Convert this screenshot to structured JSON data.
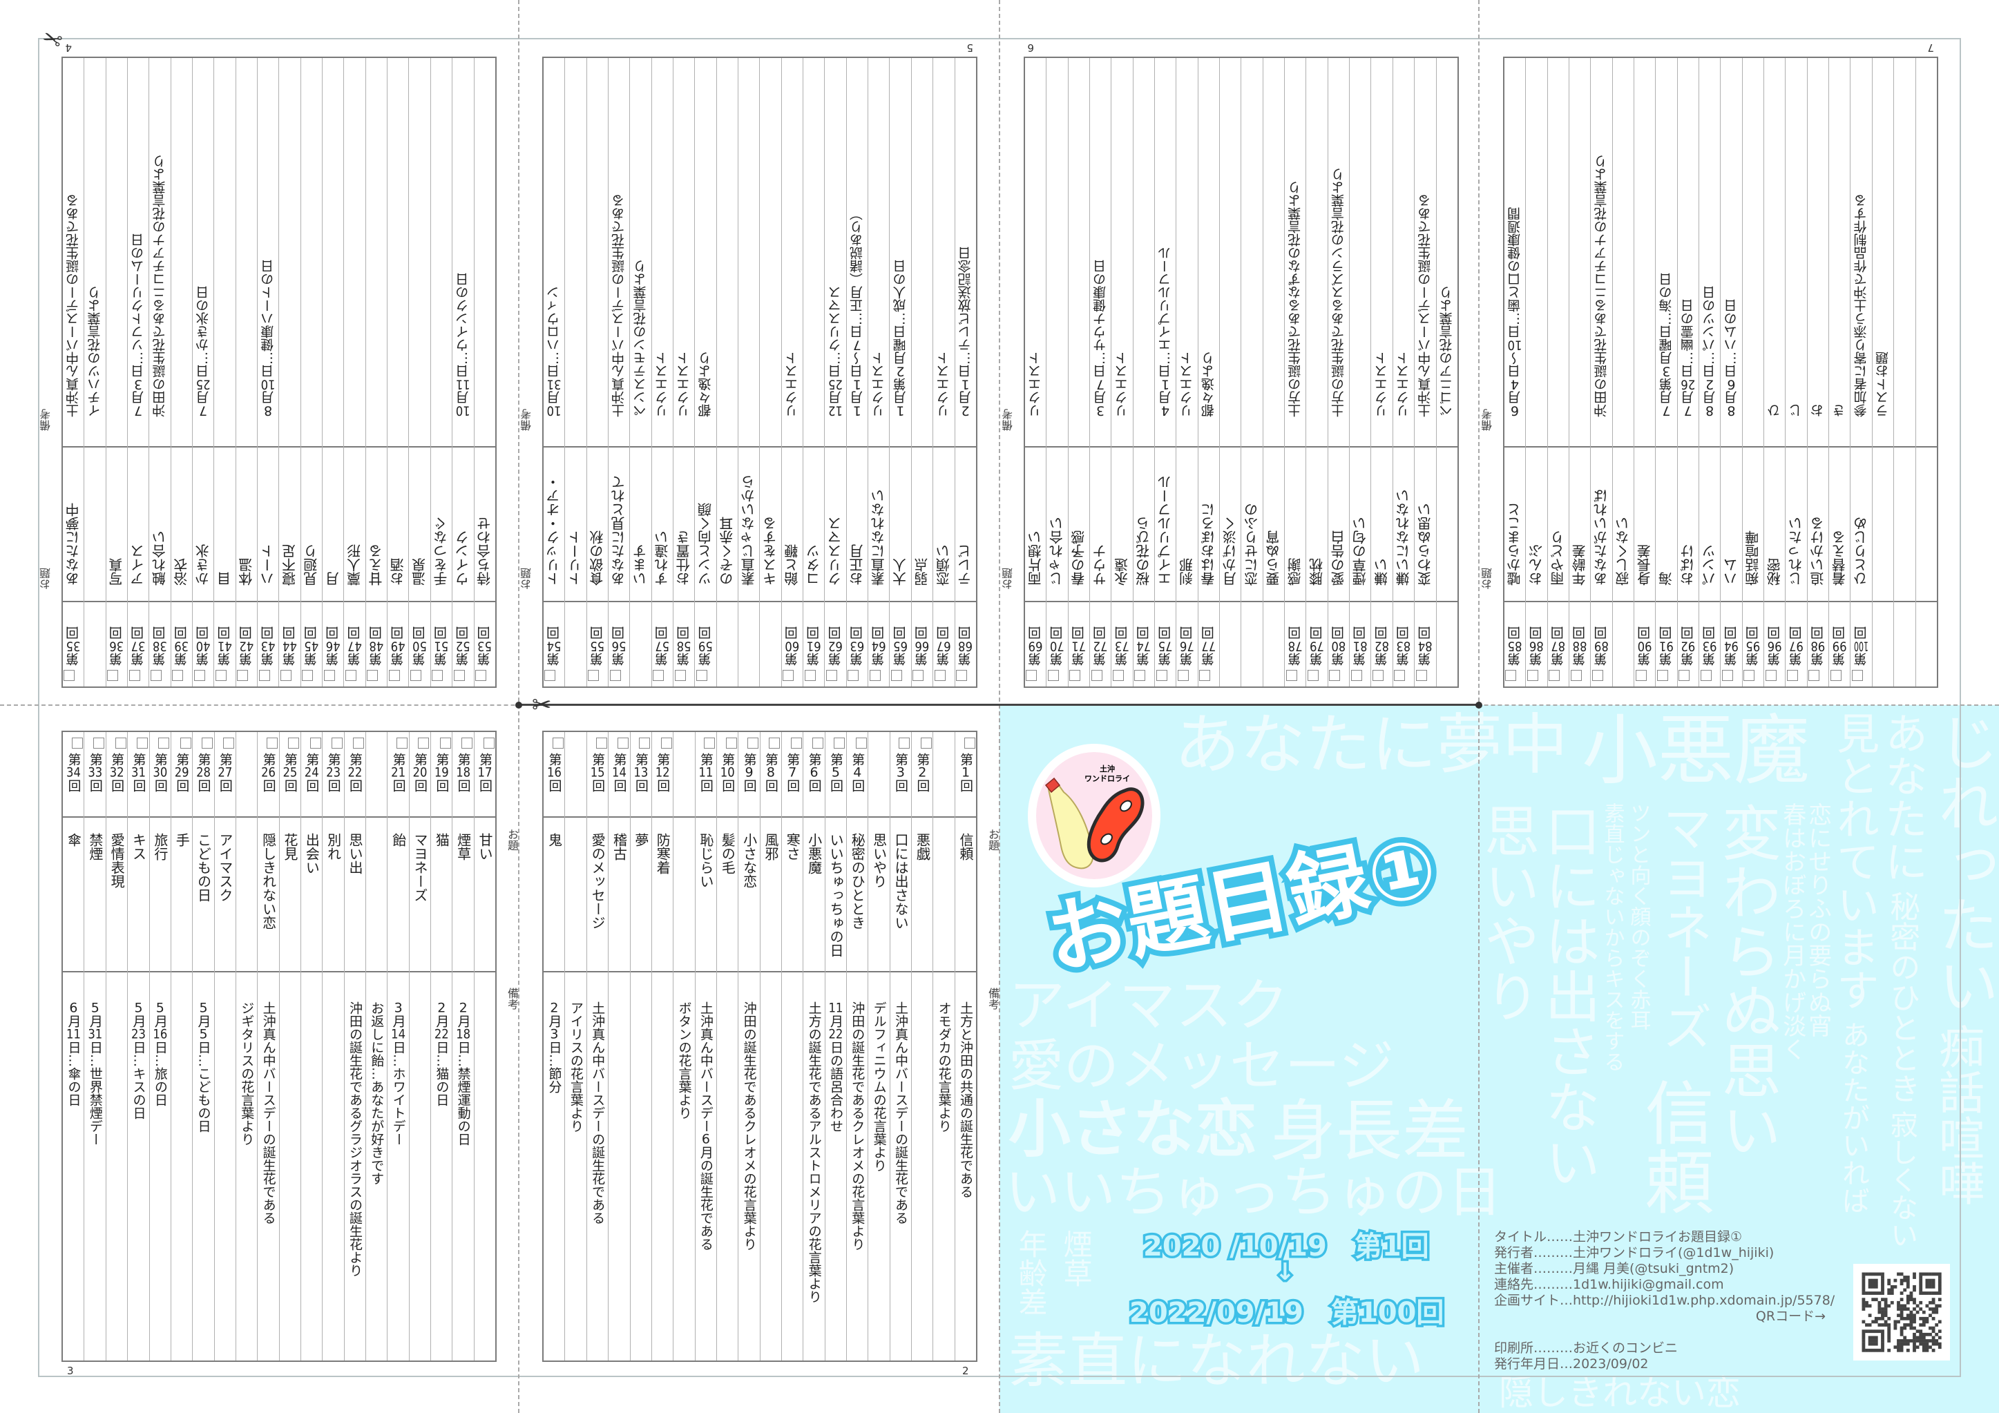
{
  "num_prefix": "第",
  "num_suffix": "回",
  "table_labels": {
    "topic": "お題",
    "note": "備考"
  },
  "pages": {
    "p4": {
      "number": "4",
      "rows": [
        {
          "num": "35",
          "topic": "あなたに夢中",
          "note": "土沖真ん中バースデーの誕生花である"
        },
        {
          "num": null,
          "topic": "",
          "note": "イチハツの花言葉より"
        },
        {
          "num": "36",
          "topic": "写真",
          "note": ""
        },
        {
          "num": "37",
          "topic": "アイス",
          "note": "7月3日…ソフトクリームの日"
        },
        {
          "num": "38",
          "topic": "触れ合い",
          "note": "沖田の誕生花であるニコチアナの花言葉より"
        },
        {
          "num": "39",
          "topic": "浴衣",
          "note": ""
        },
        {
          "num": "40",
          "topic": "かき氷",
          "note": "7月25日…かき氷の日"
        },
        {
          "num": "41",
          "topic": "目",
          "note": ""
        },
        {
          "num": "42",
          "topic": "体温",
          "note": ""
        },
        {
          "num": "43",
          "topic": "ハート",
          "note": "8月10日…健康ハートの日"
        },
        {
          "num": "44",
          "topic": "寝不足",
          "note": ""
        },
        {
          "num": "45",
          "topic": "見廻り",
          "note": ""
        },
        {
          "num": "46",
          "topic": "月",
          "note": ""
        },
        {
          "num": "47",
          "topic": "藁人形",
          "note": ""
        },
        {
          "num": "48",
          "topic": "甘える",
          "note": ""
        },
        {
          "num": "49",
          "topic": "お酒",
          "note": ""
        },
        {
          "num": "50",
          "topic": "温泉",
          "note": ""
        },
        {
          "num": "51",
          "topic": "手をつなぐ",
          "note": ""
        },
        {
          "num": "52",
          "topic": "ウインク",
          "note": "10月11日…ウインクの日"
        },
        {
          "num": "53",
          "topic": "待ち合わせ",
          "note": ""
        }
      ]
    },
    "p5": {
      "number": "5",
      "rows": [
        {
          "num": "54",
          "topic": "トリック・オア・",
          "note": "10月31日…ハロウィン"
        },
        {
          "num": null,
          "topic": "トリート",
          "note": ""
        },
        {
          "num": "55",
          "topic": "食欲の秋",
          "note": ""
        },
        {
          "num": "56",
          "topic": "あなたに見とれて",
          "note": "土沖真ん中バースデーの誕生花である"
        },
        {
          "num": null,
          "topic": "います",
          "note": "ペンステモンの花言葉より"
        },
        {
          "num": "57",
          "topic": "すれ違い",
          "note": "リクエスト"
        },
        {
          "num": "58",
          "topic": "お仕置き",
          "note": "リクエスト"
        },
        {
          "num": "59",
          "topic": "ツンと向く顔",
          "note": "都々逸より"
        },
        {
          "num": null,
          "topic": "のぞく赤耳",
          "note": ""
        },
        {
          "num": null,
          "topic": "素直じゃないから",
          "note": ""
        },
        {
          "num": null,
          "topic": "キスをする",
          "note": ""
        },
        {
          "num": "60",
          "topic": "飴と鞭",
          "note": "リクエスト"
        },
        {
          "num": "61",
          "topic": "コタツ",
          "note": ""
        },
        {
          "num": "62",
          "topic": "クリスマス",
          "note": "12月25日…クリスマス"
        },
        {
          "num": "63",
          "topic": "お正月",
          "note": "1月1日～7日…正月（諸説あり）"
        },
        {
          "num": "64",
          "topic": "素直になれない",
          "note": "リクエスト"
        },
        {
          "num": "65",
          "topic": "大人",
          "note": "1月第2月曜日…成人の日"
        },
        {
          "num": "66",
          "topic": "弱点",
          "note": ""
        },
        {
          "num": "67",
          "topic": "恋煩い",
          "note": "リクエスト"
        },
        {
          "num": "68",
          "topic": "テレビ",
          "note": "2月1日…テレビ放送記念日"
        }
      ]
    },
    "p6": {
      "number": "6",
      "rows": [
        {
          "num": "69",
          "topic": "両片想い",
          "note": "リクエスト"
        },
        {
          "num": "70",
          "topic": "じゃれ合い",
          "note": ""
        },
        {
          "num": "71",
          "topic": "春の予感",
          "note": ""
        },
        {
          "num": "72",
          "topic": "サウナ",
          "note": "3月7日…サウナ健康の日"
        },
        {
          "num": "73",
          "topic": "永遠",
          "note": "リクエスト"
        },
        {
          "num": "74",
          "topic": "桜の花びら",
          "note": ""
        },
        {
          "num": "75",
          "topic": "エイプリルフール",
          "note": "4月1日…エイプリルフール"
        },
        {
          "num": "76",
          "topic": "刹那",
          "note": "リクエスト"
        },
        {
          "num": "77",
          "topic": "春はおぼろに",
          "note": "都々逸より"
        },
        {
          "num": null,
          "topic": "月かげ淡く",
          "note": ""
        },
        {
          "num": null,
          "topic": "恋にせりふの",
          "note": ""
        },
        {
          "num": null,
          "topic": "要らぬ宵",
          "note": ""
        },
        {
          "num": "78",
          "topic": "感謝",
          "note": "土方の誕生花であるなずなの花言葉より"
        },
        {
          "num": "79",
          "topic": "膝枕",
          "note": ""
        },
        {
          "num": "80",
          "topic": "愛の告白",
          "note": "土方の誕生花であるスズランの花言葉より"
        },
        {
          "num": "81",
          "topic": "煙草の匂い",
          "note": ""
        },
        {
          "num": "82",
          "topic": "嫌い",
          "note": "リクエスト"
        },
        {
          "num": "83",
          "topic": "嫌いになれない",
          "note": "リクエスト"
        },
        {
          "num": "84",
          "topic": "変わらぬ思い",
          "note": "土沖真ん中バースデーの誕生花である"
        },
        {
          "num": null,
          "topic": "",
          "note": "ベゴニアの花言葉より"
        }
      ]
    },
    "p7": {
      "number": "7",
      "rows": [
        {
          "num": "85",
          "topic": "嘘からまこと",
          "note": "6月4日～10日…歯と口の健康週間"
        },
        {
          "num": "86",
          "topic": "おんぶ",
          "note": ""
        },
        {
          "num": "87",
          "topic": "雨やどり",
          "note": ""
        },
        {
          "num": "88",
          "topic": "年齢差",
          "note": ""
        },
        {
          "num": "89",
          "topic": "あなたがいれば",
          "note": "沖田の誕生花であるニコチアナの花言葉より"
        },
        {
          "num": null,
          "topic": "寂しくない",
          "note": ""
        },
        {
          "num": "90",
          "topic": "身長差",
          "note": ""
        },
        {
          "num": "91",
          "topic": "海",
          "note": "7月第3月曜日…海の日"
        },
        {
          "num": "92",
          "topic": "おばけ",
          "note": "7月26日…幽霊の日"
        },
        {
          "num": "93",
          "topic": "パンツ",
          "note": "8月2日…パンツの日"
        },
        {
          "num": "94",
          "topic": "ハム",
          "note": "8月6日…ハムの日"
        },
        {
          "num": "95",
          "topic": "痴話喧嘩",
          "note": ""
        },
        {
          "num": "96",
          "topic": "秘密",
          "note": "ひ"
        },
        {
          "num": "97",
          "topic": "じれったい",
          "note": "じ"
        },
        {
          "num": "98",
          "topic": "追いかける",
          "note": "お"
        },
        {
          "num": "99",
          "topic": "着替える",
          "note": "き"
        },
        {
          "num": "100",
          "topic": "ひとりじめ",
          "note": "参加者に寄り添う土沖で作品制作する"
        },
        {
          "num": null,
          "topic": "",
          "note": "ラストお題"
        },
        {
          "num": null,
          "topic": "",
          "note": ""
        },
        {
          "num": null,
          "topic": "",
          "note": ""
        }
      ]
    },
    "p3": {
      "number": "3",
      "rows": [
        {
          "num": "17",
          "topic": "甘い",
          "note": ""
        },
        {
          "num": "18",
          "topic": "煙草",
          "note": "2月18日…禁煙運動の日"
        },
        {
          "num": "19",
          "topic": "猫",
          "note": "2月22日…猫の日"
        },
        {
          "num": "20",
          "topic": "マヨネーズ",
          "note": ""
        },
        {
          "num": "21",
          "topic": "飴",
          "note": "3月14日…ホワイトデー"
        },
        {
          "num": null,
          "topic": "",
          "note": "お返しに飴…あなたが好きです"
        },
        {
          "num": "22",
          "topic": "思い出",
          "note": "沖田の誕生花であるグラジオラスの誕生花より"
        },
        {
          "num": "23",
          "topic": "別れ",
          "note": ""
        },
        {
          "num": "24",
          "topic": "出会い",
          "note": ""
        },
        {
          "num": "25",
          "topic": "花見",
          "note": ""
        },
        {
          "num": "26",
          "topic": "隠しきれない恋",
          "note": "土沖真ん中バースデーの誕生花である"
        },
        {
          "num": null,
          "topic": "",
          "note": "ジギタリスの花言葉より"
        },
        {
          "num": "27",
          "topic": "アイマスク",
          "note": ""
        },
        {
          "num": "28",
          "topic": "こどもの日",
          "note": "5月5日…こどもの日"
        },
        {
          "num": "29",
          "topic": "手",
          "note": ""
        },
        {
          "num": "30",
          "topic": "旅行",
          "note": "5月16日…旅の日"
        },
        {
          "num": "31",
          "topic": "キス",
          "note": "5月23日…キスの日"
        },
        {
          "num": "32",
          "topic": "愛情表現",
          "note": ""
        },
        {
          "num": "33",
          "topic": "禁煙",
          "note": "5月31日…世界禁煙デー"
        },
        {
          "num": "34",
          "topic": "傘",
          "note": "6月11日…傘の日"
        }
      ]
    },
    "p2": {
      "number": "2",
      "rows": [
        {
          "num": "1",
          "topic": "信頼",
          "note": "土方と沖田の共通の誕生花である"
        },
        {
          "num": null,
          "topic": "",
          "note": "オモダカの花言葉より"
        },
        {
          "num": "2",
          "topic": "悪戯",
          "note": ""
        },
        {
          "num": "3",
          "topic": "口には出さない",
          "note": "土沖真ん中バースデーの誕生花である"
        },
        {
          "num": null,
          "topic": "思いやり",
          "note": "デルフィニウムの花言葉より"
        },
        {
          "num": "4",
          "topic": "秘密のひととき",
          "note": "沖田の誕生花であるクレオメの花言葉より"
        },
        {
          "num": "5",
          "topic": "いいちゅっちゅの日",
          "note": "11月22日の語呂合わせ"
        },
        {
          "num": "6",
          "topic": "小悪魔",
          "note": "土方の誕生花であるアルストロメリアの花言葉より"
        },
        {
          "num": "7",
          "topic": "寒さ",
          "note": ""
        },
        {
          "num": "8",
          "topic": "風邪",
          "note": ""
        },
        {
          "num": "9",
          "topic": "小さな恋",
          "note": "沖田の誕生花であるクレオメの花言葉より"
        },
        {
          "num": "10",
          "topic": "髪の毛",
          "note": ""
        },
        {
          "num": "11",
          "topic": "恥じらい",
          "note": "土沖真ん中バースデー6月の誕生花である"
        },
        {
          "num": null,
          "topic": "",
          "note": "ボタンの花言葉より"
        },
        {
          "num": "12",
          "topic": "防寒着",
          "note": ""
        },
        {
          "num": "13",
          "topic": "夢",
          "note": ""
        },
        {
          "num": "14",
          "topic": "稽古",
          "note": ""
        },
        {
          "num": "15",
          "topic": "愛のメッセージ",
          "note": "土沖真ん中バースデーの誕生花である"
        },
        {
          "num": null,
          "topic": "",
          "note": "アイリスの花言葉より"
        },
        {
          "num": "16",
          "topic": "鬼",
          "note": "2月3日…節分"
        }
      ]
    }
  },
  "cover": {
    "title": "お題目録①",
    "logo_text": [
      "土沖",
      "ワンドロライ"
    ],
    "date_first": "2020 /10/19　第1回",
    "arrow": "↓",
    "date_last": "2022/09/19　第100回",
    "accent_color": "#42c3ea",
    "background_color": "#cff8fd",
    "bg_words": [
      "信頼",
      "春はおぼろに月かげ淡く",
      "恋にせりふの要らぬ宵",
      "年齢差",
      "あなたに夢中",
      "隠しきれない恋",
      "小悪魔",
      "見とれています",
      "あなたに",
      "じれったい",
      "思いやり",
      "口には出さない",
      "ツンと向く顔のぞく赤耳",
      "素直じゃないからキスをする",
      "アイマスク",
      "愛のメッセージ",
      "身長差",
      "小さな恋",
      "煙草",
      "変わらぬ思い",
      "いいちゅっちゅの日",
      "素直になれない",
      "秘密のひととき",
      "あなたがいれば",
      "寂しくない",
      "痴話喧嘩",
      "マヨネーズ"
    ]
  },
  "colophon": {
    "lines": [
      "タイトル……土沖ワンドロライお題目録①",
      "発行者………土沖ワンドロライ(@1d1w_hijiki)",
      "主催者………月縄 月美(@tsuki_gntm2)",
      "連絡先………1d1w.hijiki@gmail.com",
      "企画サイト…http://hijioki1d1w.php.xdomain.jp/5578/"
    ],
    "qr_label": "QRコード→",
    "print_lines": [
      "印刷所………お近くのコンビニ",
      "発行年月日…2023/09/02"
    ]
  }
}
